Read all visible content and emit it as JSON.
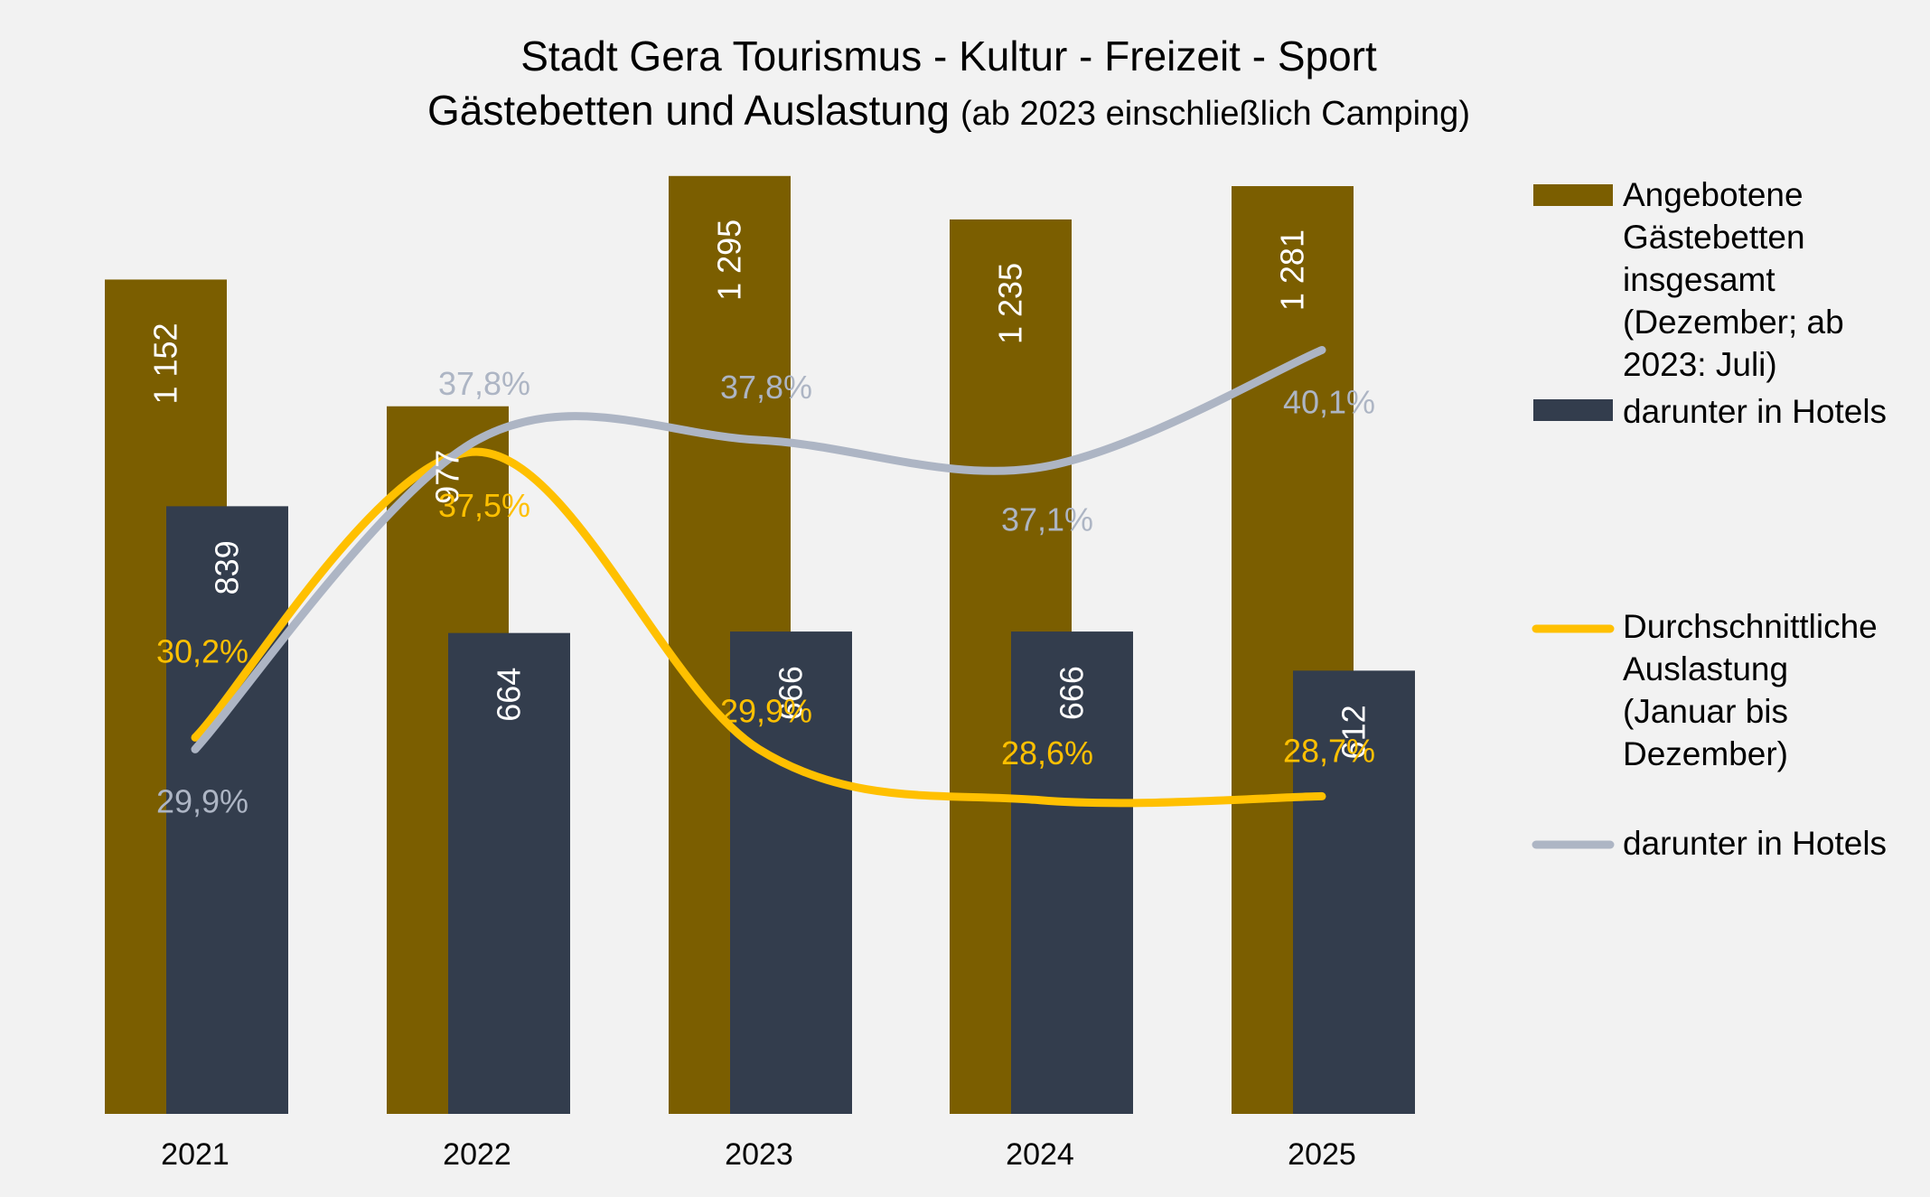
{
  "chart_data": {
    "type": "bar",
    "title": "Stadt Gera Tourismus - Kultur - Freizeit - Sport",
    "subtitle_main": "Gästebetten und Auslastung",
    "subtitle_note": "(ab 2023 einschließlich Camping)",
    "categories": [
      "2021",
      "2022",
      "2023",
      "2024",
      "2025"
    ],
    "bar_series": [
      {
        "name": "Angebotene Gästebetten insgesamt (Dezember; ab 2023: Juli)",
        "legend_lines": [
          "Angebotene",
          "Gästebetten",
          "insgesamt",
          "(Dezember; ab",
          "2023: Juli)"
        ],
        "color": "#7b5e00",
        "values": [
          1152,
          977,
          1295,
          1235,
          1281
        ],
        "labels": [
          "1 152",
          "977",
          "1 295",
          "1 235",
          "1 281"
        ]
      },
      {
        "name": "darunter in Hotels",
        "legend_lines": [
          "darunter in Hotels"
        ],
        "color": "#333d4d",
        "values": [
          839,
          664,
          666,
          666,
          612
        ],
        "labels": [
          "839",
          "664",
          "666",
          "666",
          "612"
        ]
      }
    ],
    "line_series": [
      {
        "name": "Durchschnittliche Auslastung (Januar bis Dezember)",
        "legend_lines": [
          "Durchschnittliche",
          "Auslastung",
          "(Januar bis",
          "Dezember)"
        ],
        "color": "#ffc000",
        "values": [
          30.2,
          37.5,
          29.9,
          28.6,
          28.7
        ],
        "labels": [
          "30,2%",
          "37,5%",
          "29,9%",
          "28,6%",
          "28,7%"
        ]
      },
      {
        "name": "darunter in Hotels",
        "legend_lines": [
          "darunter in Hotels"
        ],
        "color": "#adb5c4",
        "values": [
          29.9,
          37.8,
          37.8,
          37.1,
          40.1
        ],
        "labels": [
          "29,9%",
          "37,8%",
          "37,8%",
          "37,1%",
          "40,1%"
        ]
      }
    ],
    "legend_position": "right",
    "grid": false
  }
}
